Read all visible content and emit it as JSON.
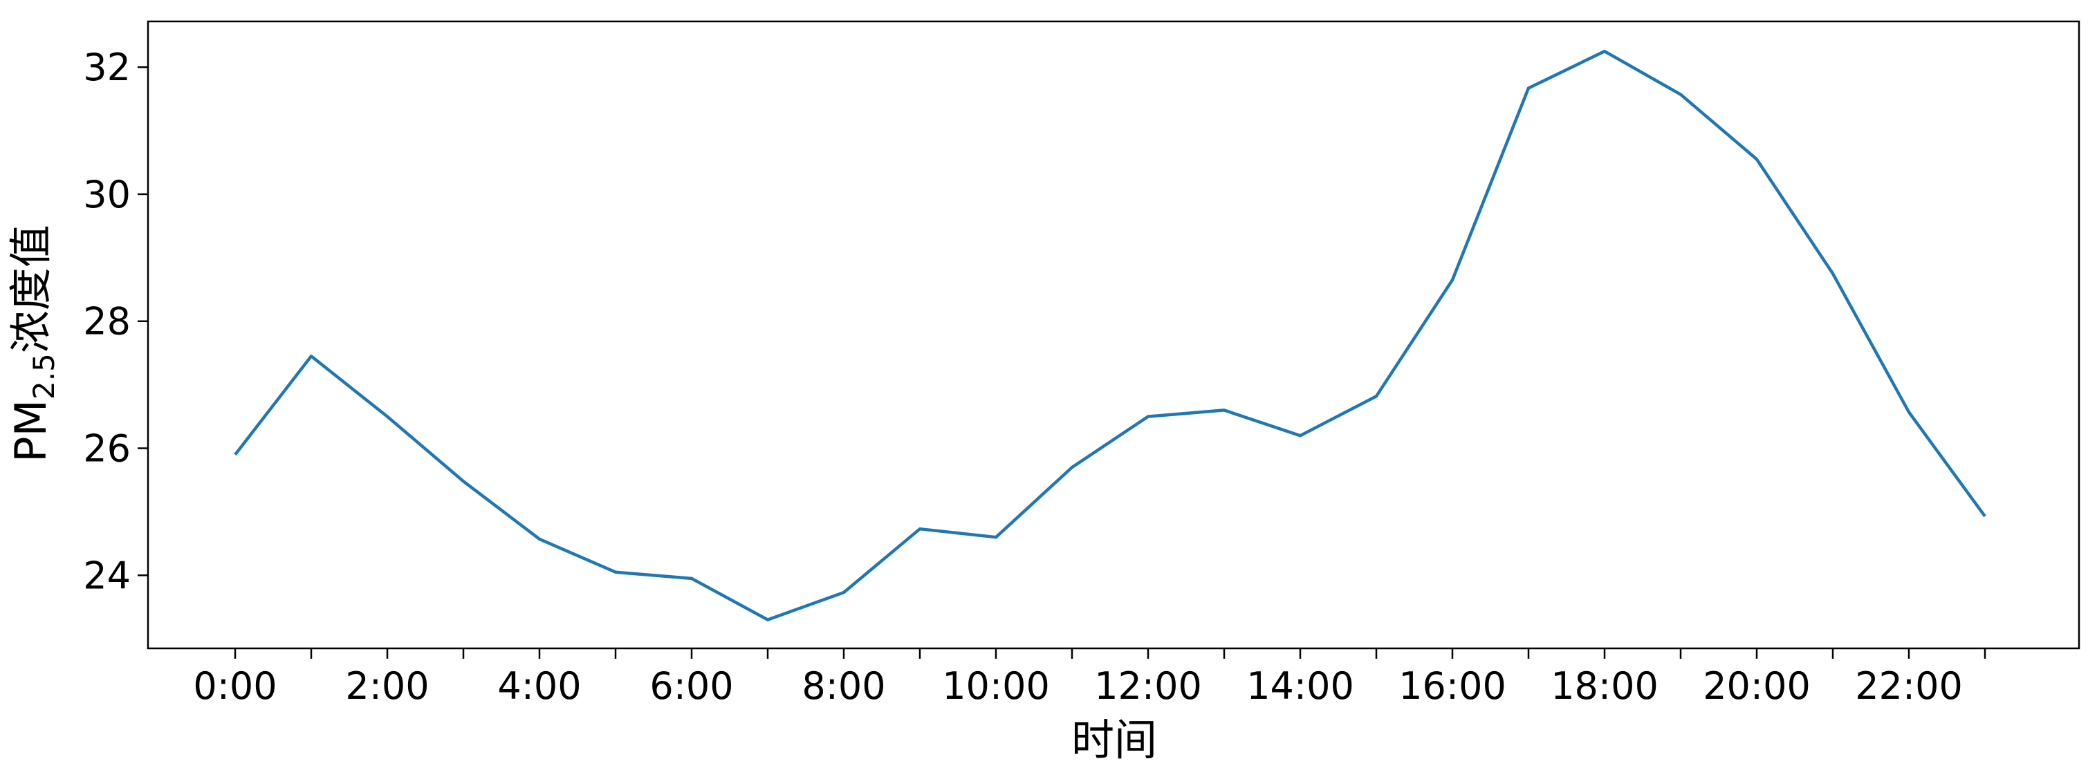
{
  "chart_data": {
    "type": "line",
    "title": "",
    "xlabel": "时间",
    "ylabel": {
      "main": "PM",
      "subscript": "2.5",
      "suffix": "浓度值"
    },
    "x": [
      "0:00",
      "1:00",
      "2:00",
      "3:00",
      "4:00",
      "5:00",
      "6:00",
      "7:00",
      "8:00",
      "9:00",
      "10:00",
      "11:00",
      "12:00",
      "13:00",
      "14:00",
      "15:00",
      "16:00",
      "17:00",
      "18:00",
      "19:00",
      "20:00",
      "21:00",
      "22:00",
      "23:00"
    ],
    "x_tick_labels": [
      "0:00",
      "2:00",
      "4:00",
      "6:00",
      "8:00",
      "10:00",
      "12:00",
      "14:00",
      "16:00",
      "18:00",
      "20:00",
      "22:00"
    ],
    "series": [
      {
        "values": [
          25.9,
          27.45,
          26.5,
          25.48,
          24.57,
          24.05,
          23.95,
          23.3,
          23.73,
          24.73,
          24.6,
          25.7,
          26.5,
          26.6,
          26.2,
          26.82,
          28.65,
          31.67,
          32.25,
          31.57,
          30.55,
          28.75,
          26.57,
          24.93
        ],
        "color": "#1f77b4"
      }
    ],
    "ylim": [
      22.85,
      32.72
    ],
    "y_ticks": [
      24,
      26,
      28,
      30,
      32
    ],
    "grid": false,
    "legend": "none"
  }
}
